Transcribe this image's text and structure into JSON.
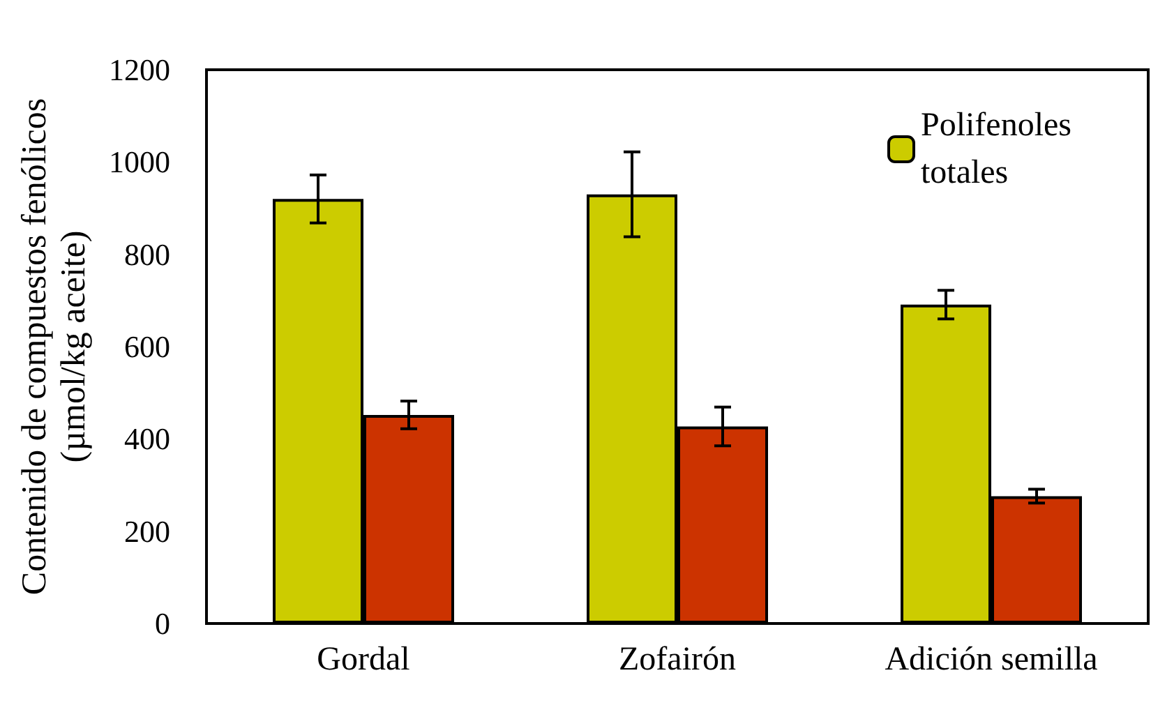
{
  "chart_data": {
    "type": "bar",
    "ylabel": "Contenido de compuestos fenólicos (µmol/kg aceite)",
    "categories": [
      "Gordal",
      "Zofairón",
      "Adición semilla"
    ],
    "series": [
      {
        "name": "Polifenoles totales",
        "color": "#cccc00",
        "values": [
          920,
          930,
          691
        ],
        "errors": [
          52,
          92,
          31
        ]
      },
      {
        "color": "#cc3300",
        "values": [
          452,
          427,
          276
        ],
        "errors": [
          30,
          42,
          15
        ]
      }
    ],
    "ylim": [
      0,
      1200
    ],
    "yticks": [
      0,
      200,
      400,
      600,
      800,
      1000,
      1200
    ],
    "grid": false,
    "legend": "top right"
  }
}
